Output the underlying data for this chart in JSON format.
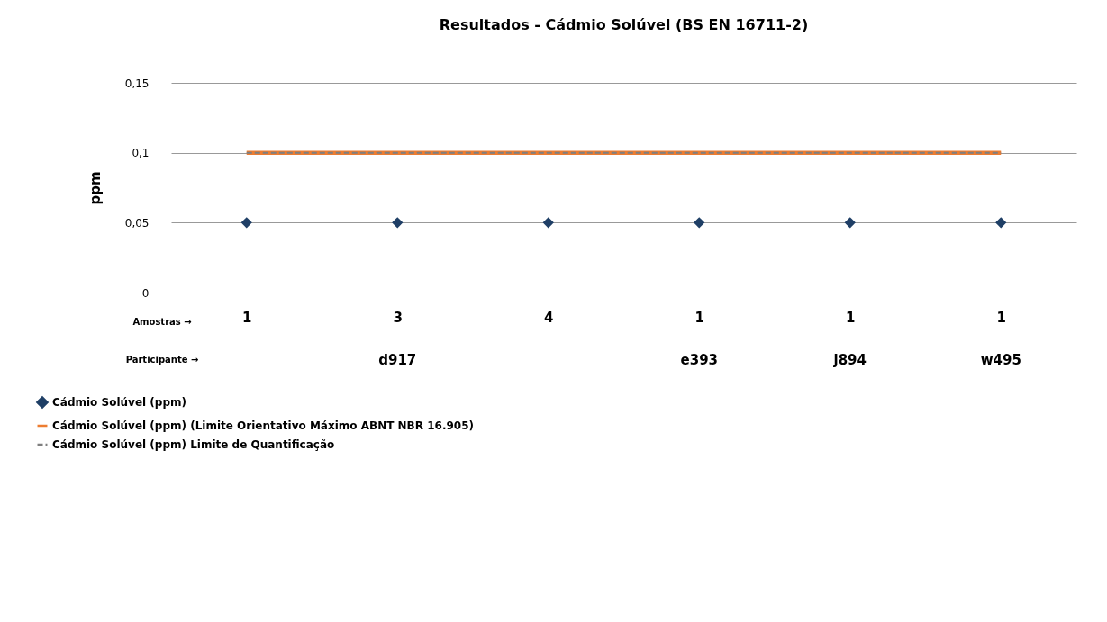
{
  "chart_data": {
    "type": "scatter",
    "title": "Resultados - Cádmio Solúvel (BS EN 16711-2)",
    "ylabel": "ppm",
    "categories": [
      "1",
      "3",
      "4",
      "1",
      "1",
      "1"
    ],
    "series": [
      {
        "name": "Cádmio Solúvel (ppm)",
        "color": "#1f3f66",
        "marker": "diamond",
        "values": [
          0.05,
          0.05,
          0.05,
          0.05,
          0.05,
          0.05
        ]
      },
      {
        "name": "Cádmio Solúvel (ppm) (Limite Orientativo Máximo  ABNT NBR 16.905)",
        "type": "line",
        "color": "#ed7d31",
        "line_style": "solid",
        "values": [
          0.1,
          0.1,
          0.1,
          0.1,
          0.1,
          0.1
        ]
      },
      {
        "name": "Cádmio Solúvel (ppm) Limite de Quantificação",
        "type": "line",
        "color": "#7f7f7f",
        "line_style": "dashed",
        "values": [
          0.1,
          0.1,
          0.1,
          0.1,
          0.1,
          0.1
        ]
      }
    ],
    "ylim": [
      0,
      0.15
    ],
    "yticks": [
      {
        "value": 0,
        "label": "0"
      },
      {
        "value": 0.05,
        "label": "0,05"
      },
      {
        "value": 0.1,
        "label": "0,1"
      },
      {
        "value": 0.15,
        "label": "0,15"
      }
    ],
    "grid": "y",
    "legend": "bottom",
    "annotations": [
      "Amostras →",
      "Participante →",
      "d917",
      "e393",
      "j894",
      "w495"
    ]
  }
}
